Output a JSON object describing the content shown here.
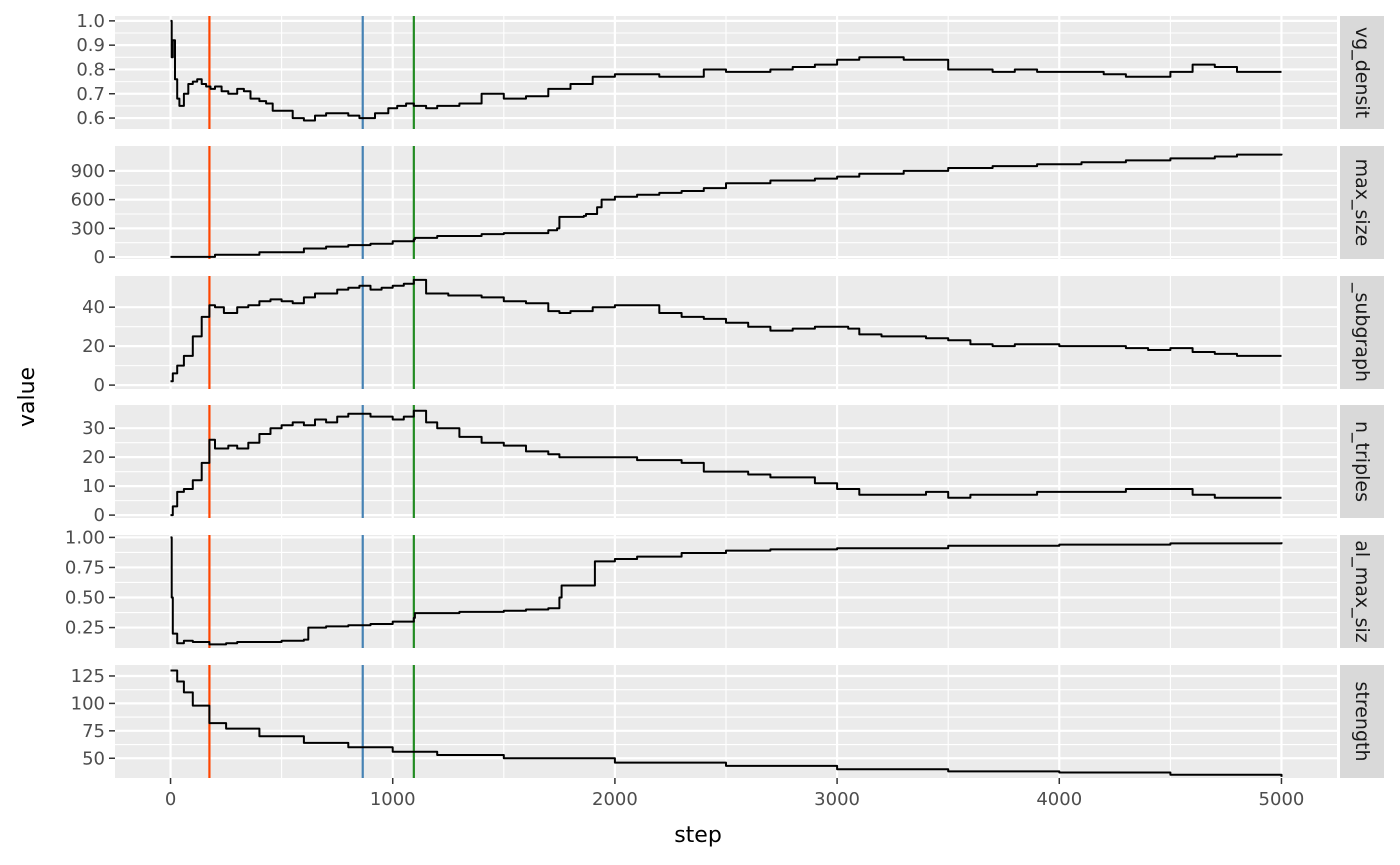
{
  "chart_data": {
    "type": "line",
    "xlabel": "step",
    "ylabel": "value",
    "xlim": [
      -250,
      5250
    ],
    "x_ticks": [
      0,
      1000,
      2000,
      3000,
      4000,
      5000
    ],
    "x_tick_labels": [
      "0",
      "1000",
      "2000",
      "3000",
      "4000",
      "5000"
    ],
    "grid": true,
    "legend": "none",
    "vlines": [
      {
        "x": 175,
        "color": "#ff4500"
      },
      {
        "x": 865,
        "color": "#4682b4"
      },
      {
        "x": 1095,
        "color": "#228b22"
      }
    ],
    "facets": [
      {
        "strip": "vg_densit",
        "ylim": [
          0.555,
          1.02
        ],
        "y_ticks": [
          0.6,
          0.7,
          0.8,
          0.9,
          1.0
        ],
        "y_tick_labels": [
          "0.6",
          "0.7",
          "0.8",
          "0.9",
          "1.0"
        ],
        "points": [
          [
            0,
            1.0
          ],
          [
            5,
            0.85
          ],
          [
            10,
            0.92
          ],
          [
            20,
            0.76
          ],
          [
            30,
            0.68
          ],
          [
            40,
            0.65
          ],
          [
            60,
            0.7
          ],
          [
            80,
            0.74
          ],
          [
            100,
            0.75
          ],
          [
            120,
            0.76
          ],
          [
            140,
            0.74
          ],
          [
            160,
            0.73
          ],
          [
            180,
            0.72
          ],
          [
            200,
            0.73
          ],
          [
            230,
            0.71
          ],
          [
            260,
            0.7
          ],
          [
            300,
            0.72
          ],
          [
            330,
            0.71
          ],
          [
            360,
            0.68
          ],
          [
            400,
            0.67
          ],
          [
            430,
            0.66
          ],
          [
            460,
            0.63
          ],
          [
            500,
            0.63
          ],
          [
            550,
            0.6
          ],
          [
            600,
            0.59
          ],
          [
            650,
            0.61
          ],
          [
            700,
            0.62
          ],
          [
            750,
            0.62
          ],
          [
            800,
            0.61
          ],
          [
            850,
            0.6
          ],
          [
            880,
            0.6
          ],
          [
            920,
            0.62
          ],
          [
            980,
            0.64
          ],
          [
            1020,
            0.65
          ],
          [
            1060,
            0.66
          ],
          [
            1095,
            0.65
          ],
          [
            1150,
            0.64
          ],
          [
            1200,
            0.65
          ],
          [
            1300,
            0.66
          ],
          [
            1400,
            0.7
          ],
          [
            1500,
            0.68
          ],
          [
            1600,
            0.69
          ],
          [
            1700,
            0.72
          ],
          [
            1800,
            0.74
          ],
          [
            1900,
            0.77
          ],
          [
            2000,
            0.78
          ],
          [
            2100,
            0.78
          ],
          [
            2200,
            0.77
          ],
          [
            2300,
            0.77
          ],
          [
            2400,
            0.8
          ],
          [
            2500,
            0.79
          ],
          [
            2600,
            0.79
          ],
          [
            2700,
            0.8
          ],
          [
            2800,
            0.81
          ],
          [
            2900,
            0.82
          ],
          [
            3000,
            0.84
          ],
          [
            3100,
            0.85
          ],
          [
            3200,
            0.85
          ],
          [
            3300,
            0.84
          ],
          [
            3400,
            0.84
          ],
          [
            3500,
            0.8
          ],
          [
            3600,
            0.8
          ],
          [
            3700,
            0.79
          ],
          [
            3800,
            0.8
          ],
          [
            3900,
            0.79
          ],
          [
            4000,
            0.79
          ],
          [
            4100,
            0.79
          ],
          [
            4200,
            0.78
          ],
          [
            4300,
            0.77
          ],
          [
            4400,
            0.77
          ],
          [
            4500,
            0.79
          ],
          [
            4600,
            0.82
          ],
          [
            4700,
            0.81
          ],
          [
            4800,
            0.79
          ],
          [
            4900,
            0.79
          ],
          [
            5000,
            0.79
          ]
        ]
      },
      {
        "strip": "max_size",
        "ylim": [
          -20,
          1160
        ],
        "y_ticks": [
          0,
          300,
          600,
          900
        ],
        "y_tick_labels": [
          "0",
          "300",
          "600",
          "900"
        ],
        "points": [
          [
            0,
            2
          ],
          [
            200,
            25
          ],
          [
            400,
            50
          ],
          [
            600,
            90
          ],
          [
            700,
            110
          ],
          [
            800,
            125
          ],
          [
            900,
            140
          ],
          [
            1000,
            165
          ],
          [
            1095,
            185
          ],
          [
            1100,
            200
          ],
          [
            1200,
            220
          ],
          [
            1400,
            240
          ],
          [
            1500,
            250
          ],
          [
            1700,
            280
          ],
          [
            1740,
            300
          ],
          [
            1750,
            420
          ],
          [
            1860,
            430
          ],
          [
            1870,
            450
          ],
          [
            1920,
            520
          ],
          [
            1940,
            600
          ],
          [
            2000,
            630
          ],
          [
            2100,
            650
          ],
          [
            2200,
            670
          ],
          [
            2300,
            690
          ],
          [
            2400,
            720
          ],
          [
            2500,
            770
          ],
          [
            2700,
            800
          ],
          [
            2900,
            820
          ],
          [
            3000,
            840
          ],
          [
            3100,
            870
          ],
          [
            3300,
            900
          ],
          [
            3500,
            930
          ],
          [
            3700,
            950
          ],
          [
            3900,
            970
          ],
          [
            4100,
            990
          ],
          [
            4300,
            1010
          ],
          [
            4500,
            1030
          ],
          [
            4700,
            1050
          ],
          [
            4800,
            1070
          ],
          [
            5000,
            1080
          ]
        ]
      },
      {
        "strip": "_subgraph",
        "ylim": [
          -2,
          56
        ],
        "y_ticks": [
          0,
          20,
          40
        ],
        "y_tick_labels": [
          "0",
          "20",
          "40"
        ],
        "points": [
          [
            0,
            2
          ],
          [
            10,
            6
          ],
          [
            30,
            10
          ],
          [
            60,
            15
          ],
          [
            100,
            25
          ],
          [
            140,
            35
          ],
          [
            175,
            41
          ],
          [
            200,
            40
          ],
          [
            240,
            37
          ],
          [
            300,
            40
          ],
          [
            350,
            41
          ],
          [
            400,
            43
          ],
          [
            450,
            44
          ],
          [
            500,
            43
          ],
          [
            550,
            42
          ],
          [
            600,
            45
          ],
          [
            650,
            47
          ],
          [
            700,
            47
          ],
          [
            750,
            49
          ],
          [
            800,
            50
          ],
          [
            850,
            51
          ],
          [
            900,
            49
          ],
          [
            950,
            50
          ],
          [
            1000,
            51
          ],
          [
            1050,
            52
          ],
          [
            1095,
            54
          ],
          [
            1150,
            47
          ],
          [
            1250,
            46
          ],
          [
            1400,
            45
          ],
          [
            1500,
            43
          ],
          [
            1600,
            42
          ],
          [
            1700,
            38
          ],
          [
            1750,
            37
          ],
          [
            1800,
            38
          ],
          [
            1900,
            40
          ],
          [
            2000,
            41
          ],
          [
            2100,
            41
          ],
          [
            2200,
            37
          ],
          [
            2300,
            35
          ],
          [
            2400,
            34
          ],
          [
            2500,
            32
          ],
          [
            2600,
            30
          ],
          [
            2700,
            28
          ],
          [
            2800,
            29
          ],
          [
            2900,
            30
          ],
          [
            3000,
            30
          ],
          [
            3050,
            29
          ],
          [
            3100,
            26
          ],
          [
            3200,
            25
          ],
          [
            3300,
            25
          ],
          [
            3400,
            24
          ],
          [
            3500,
            23
          ],
          [
            3600,
            21
          ],
          [
            3700,
            20
          ],
          [
            3800,
            21
          ],
          [
            3900,
            21
          ],
          [
            4000,
            20
          ],
          [
            4100,
            20
          ],
          [
            4200,
            20
          ],
          [
            4300,
            19
          ],
          [
            4400,
            18
          ],
          [
            4500,
            19
          ],
          [
            4600,
            17
          ],
          [
            4700,
            16
          ],
          [
            4800,
            15
          ],
          [
            5000,
            15
          ]
        ]
      },
      {
        "strip": "n_triples",
        "ylim": [
          -1,
          38
        ],
        "y_ticks": [
          0,
          10,
          20,
          30
        ],
        "y_tick_labels": [
          "0",
          "10",
          "20",
          "30"
        ],
        "points": [
          [
            0,
            0
          ],
          [
            10,
            3
          ],
          [
            30,
            8
          ],
          [
            60,
            9
          ],
          [
            100,
            12
          ],
          [
            140,
            18
          ],
          [
            175,
            26
          ],
          [
            200,
            23
          ],
          [
            260,
            24
          ],
          [
            300,
            23
          ],
          [
            350,
            25
          ],
          [
            400,
            28
          ],
          [
            450,
            30
          ],
          [
            500,
            31
          ],
          [
            550,
            32
          ],
          [
            600,
            31
          ],
          [
            650,
            33
          ],
          [
            700,
            32
          ],
          [
            750,
            34
          ],
          [
            800,
            35
          ],
          [
            850,
            35
          ],
          [
            900,
            34
          ],
          [
            950,
            34
          ],
          [
            1000,
            33
          ],
          [
            1050,
            34
          ],
          [
            1095,
            36
          ],
          [
            1150,
            32
          ],
          [
            1200,
            30
          ],
          [
            1300,
            27
          ],
          [
            1400,
            25
          ],
          [
            1500,
            24
          ],
          [
            1600,
            22
          ],
          [
            1700,
            21
          ],
          [
            1750,
            20
          ],
          [
            1900,
            20
          ],
          [
            2000,
            20
          ],
          [
            2100,
            19
          ],
          [
            2200,
            19
          ],
          [
            2300,
            18
          ],
          [
            2400,
            15
          ],
          [
            2500,
            15
          ],
          [
            2600,
            14
          ],
          [
            2700,
            13
          ],
          [
            2800,
            13
          ],
          [
            2900,
            11
          ],
          [
            3000,
            9
          ],
          [
            3100,
            7
          ],
          [
            3200,
            7
          ],
          [
            3300,
            7
          ],
          [
            3400,
            8
          ],
          [
            3500,
            6
          ],
          [
            3600,
            7
          ],
          [
            3800,
            7
          ],
          [
            3900,
            8
          ],
          [
            4000,
            8
          ],
          [
            4300,
            9
          ],
          [
            4500,
            9
          ],
          [
            4600,
            7
          ],
          [
            4700,
            6
          ],
          [
            5000,
            6
          ]
        ]
      },
      {
        "strip": "al_max_siz",
        "ylim": [
          0.08,
          1.02
        ],
        "y_ticks": [
          0.25,
          0.5,
          0.75,
          1.0
        ],
        "y_tick_labels": [
          "0.25",
          "0.50",
          "0.75",
          "1.00"
        ],
        "points": [
          [
            0,
            1.0
          ],
          [
            5,
            0.5
          ],
          [
            10,
            0.2
          ],
          [
            30,
            0.12
          ],
          [
            60,
            0.14
          ],
          [
            100,
            0.13
          ],
          [
            175,
            0.11
          ],
          [
            250,
            0.12
          ],
          [
            300,
            0.13
          ],
          [
            400,
            0.13
          ],
          [
            500,
            0.14
          ],
          [
            600,
            0.15
          ],
          [
            620,
            0.25
          ],
          [
            700,
            0.26
          ],
          [
            800,
            0.27
          ],
          [
            900,
            0.28
          ],
          [
            1000,
            0.3
          ],
          [
            1095,
            0.33
          ],
          [
            1100,
            0.37
          ],
          [
            1300,
            0.38
          ],
          [
            1500,
            0.39
          ],
          [
            1600,
            0.4
          ],
          [
            1700,
            0.41
          ],
          [
            1750,
            0.5
          ],
          [
            1760,
            0.6
          ],
          [
            1900,
            0.6
          ],
          [
            1910,
            0.8
          ],
          [
            2000,
            0.82
          ],
          [
            2100,
            0.84
          ],
          [
            2300,
            0.87
          ],
          [
            2500,
            0.89
          ],
          [
            2700,
            0.9
          ],
          [
            3000,
            0.91
          ],
          [
            3500,
            0.93
          ],
          [
            4000,
            0.94
          ],
          [
            4500,
            0.95
          ],
          [
            5000,
            0.96
          ]
        ]
      },
      {
        "strip": "strength",
        "ylim": [
          32,
          135
        ],
        "y_ticks": [
          50,
          75,
          100,
          125
        ],
        "y_tick_labels": [
          "50",
          "75",
          "100",
          "125"
        ],
        "points": [
          [
            0,
            130
          ],
          [
            30,
            120
          ],
          [
            60,
            110
          ],
          [
            100,
            98
          ],
          [
            175,
            82
          ],
          [
            250,
            77
          ],
          [
            400,
            70
          ],
          [
            600,
            64
          ],
          [
            800,
            60
          ],
          [
            1000,
            56
          ],
          [
            1200,
            53
          ],
          [
            1500,
            50
          ],
          [
            2000,
            46
          ],
          [
            2500,
            43
          ],
          [
            3000,
            40
          ],
          [
            3500,
            38
          ],
          [
            4000,
            37
          ],
          [
            4500,
            35
          ],
          [
            5000,
            33
          ]
        ]
      }
    ]
  }
}
